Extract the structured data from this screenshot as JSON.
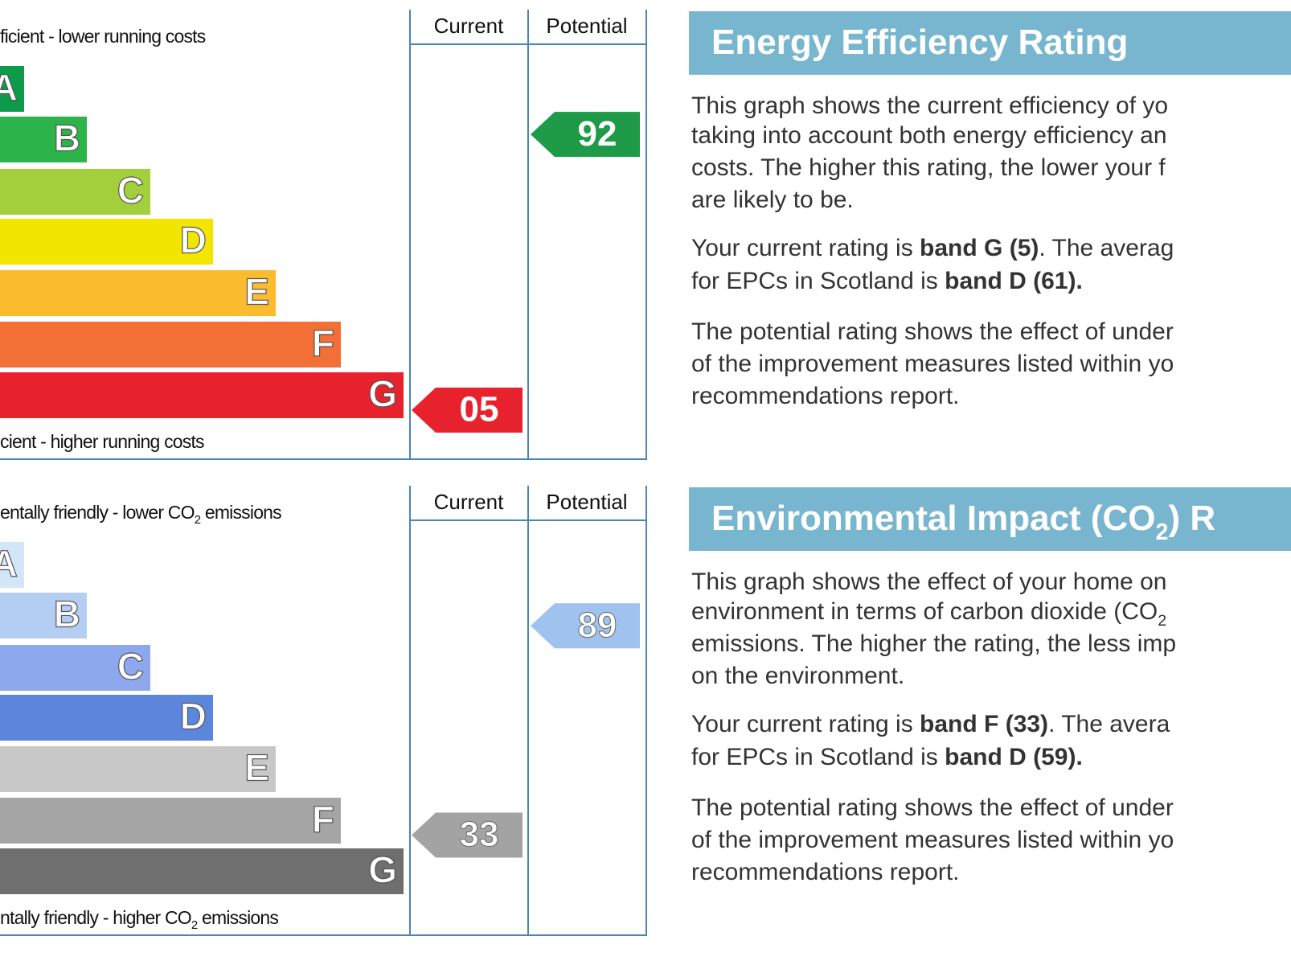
{
  "panels": [
    {
      "heading": [
        "Energy Efficiency Rating"
      ],
      "columns": [
        "Current",
        "Potential"
      ],
      "top_label": [
        "ficient - lower running costs"
      ],
      "bottom_label": [
        "cient - higher running costs"
      ],
      "bands": [
        "A",
        "B",
        "C",
        "D",
        "E",
        "F",
        "G"
      ],
      "colors": [
        "#0c9b48",
        "#2cb34a",
        "#a4cf3d",
        "#f2e600",
        "#fbbb2f",
        "#f26f36",
        "#e8222d"
      ],
      "current": "05",
      "current_color": "#e8222d",
      "potential": "92",
      "potential_color": "#1e9a48",
      "paragraphs": [
        [
          [
            "This graph shows the current efficiency of yo"
          ],
          [
            "taking into account both energy efficiency an"
          ],
          [
            "costs. The higher this rating, the lower your f"
          ],
          [
            "are likely to be."
          ]
        ],
        [
          [
            "Your current rating is ",
            {
              "text": "band G (5)",
              "bold": true
            },
            ". The averag"
          ],
          [
            "for EPCs in Scotland is ",
            {
              "text": "band D (61).",
              "bold": true
            }
          ]
        ],
        [
          [
            "The potential rating shows the effect of under"
          ],
          [
            "of the improvement measures listed within yo"
          ],
          [
            "recommendations report."
          ]
        ]
      ]
    },
    {
      "heading": [
        "Environmental Impact (CO",
        {
          "text": "2",
          "sub": true
        },
        ") R"
      ],
      "columns": [
        "Current",
        "Potential"
      ],
      "top_label": [
        "entally friendly - lower CO",
        {
          "text": "2",
          "sub": true
        },
        " emissions"
      ],
      "bottom_label": [
        "ntally friendly - higher CO",
        {
          "text": "2",
          "sub": true
        },
        " emissions"
      ],
      "bands": [
        "A",
        "B",
        "C",
        "D",
        "E",
        "F",
        "G"
      ],
      "colors": [
        "#d3e6f8",
        "#b3cdf3",
        "#8ea8ee",
        "#5c86dc",
        "#c8c8c8",
        "#a5a5a5",
        "#6f6f6f"
      ],
      "current": "33",
      "current_color": "#a3a3a3",
      "potential": "89",
      "potential_color": "#9fc2ef",
      "paragraphs": [
        [
          [
            "This graph shows the effect of your home on"
          ],
          [
            "environment in terms of carbon dioxide (CO",
            {
              "text": "2",
              "sub": true
            }
          ],
          [
            "emissions. The higher the rating, the less imp"
          ],
          [
            "on the environment."
          ]
        ],
        [
          [
            "Your current rating is ",
            {
              "text": "band F (33)",
              "bold": true
            },
            ". The avera"
          ],
          [
            "for EPCs in Scotland is ",
            {
              "text": "band D (59).",
              "bold": true
            }
          ]
        ],
        [
          [
            "The potential rating shows the effect of under"
          ],
          [
            "of the improvement measures listed within yo"
          ],
          [
            "recommendations report."
          ]
        ]
      ]
    }
  ]
}
